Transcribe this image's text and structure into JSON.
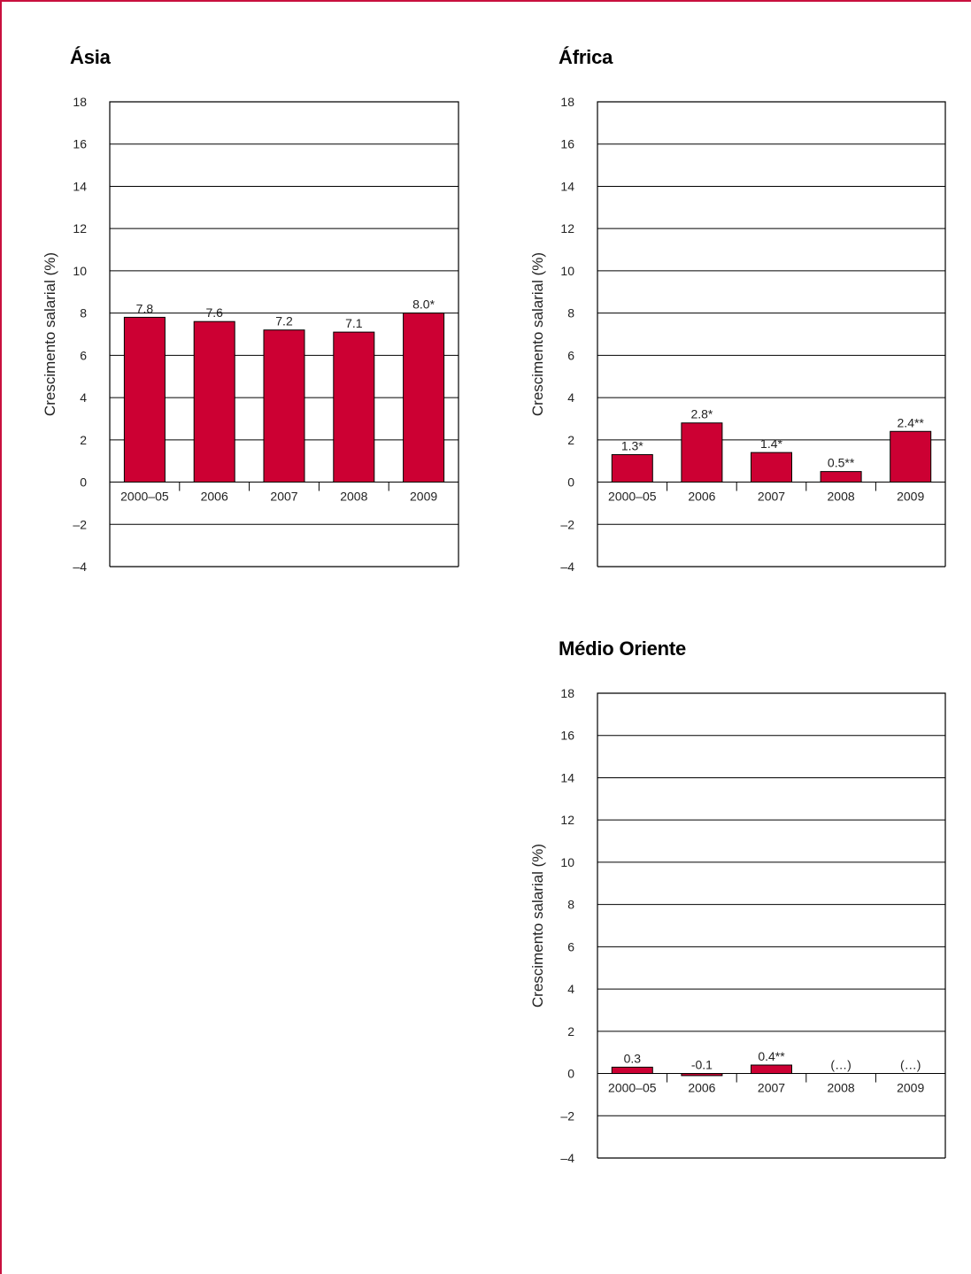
{
  "chart_data": [
    {
      "type": "bar",
      "title": "Ásia",
      "ylabel": "Crescimento salarial (%)",
      "ylim": [
        -4,
        18
      ],
      "yticks": [
        "–4",
        "–2",
        "0",
        "2",
        "4",
        "6",
        "8",
        "10",
        "12",
        "14",
        "16",
        "18"
      ],
      "categories": [
        "2000–05",
        "2006",
        "2007",
        "2008",
        "2009"
      ],
      "values": [
        7.8,
        7.6,
        7.2,
        7.1,
        8.0
      ],
      "labels": [
        "7.8",
        "7.6",
        "7.2",
        "7.1",
        "8.0*"
      ],
      "grid": true,
      "bar_color": "#cc0033"
    },
    {
      "type": "bar",
      "title": "África",
      "ylabel": "Crescimento salarial (%)",
      "ylim": [
        -4,
        18
      ],
      "yticks": [
        "–4",
        "–2",
        "0",
        "2",
        "4",
        "6",
        "8",
        "10",
        "12",
        "14",
        "16",
        "18"
      ],
      "categories": [
        "2000–05",
        "2006",
        "2007",
        "2008",
        "2009"
      ],
      "values": [
        1.3,
        2.8,
        1.4,
        0.5,
        2.4
      ],
      "labels": [
        "1.3*",
        "2.8*",
        "1.4*",
        "0.5**",
        "2.4**"
      ],
      "grid": true,
      "bar_color": "#cc0033"
    },
    {
      "type": "bar",
      "title": "Médio Oriente",
      "ylabel": "Crescimento salarial (%)",
      "ylim": [
        -4,
        18
      ],
      "yticks": [
        "–4",
        "–2",
        "0",
        "2",
        "4",
        "6",
        "8",
        "10",
        "12",
        "14",
        "16",
        "18"
      ],
      "categories": [
        "2000–05",
        "2006",
        "2007",
        "2008",
        "2009"
      ],
      "values": [
        0.3,
        -0.1,
        0.4,
        null,
        null
      ],
      "labels": [
        "0.3",
        "-0.1",
        "0.4**",
        "(…)",
        "(…)"
      ],
      "grid": true,
      "bar_color": "#cc0033"
    }
  ],
  "colors": {
    "frame": "#c8103e",
    "bar": "#cc0033",
    "grid": "#000000"
  }
}
